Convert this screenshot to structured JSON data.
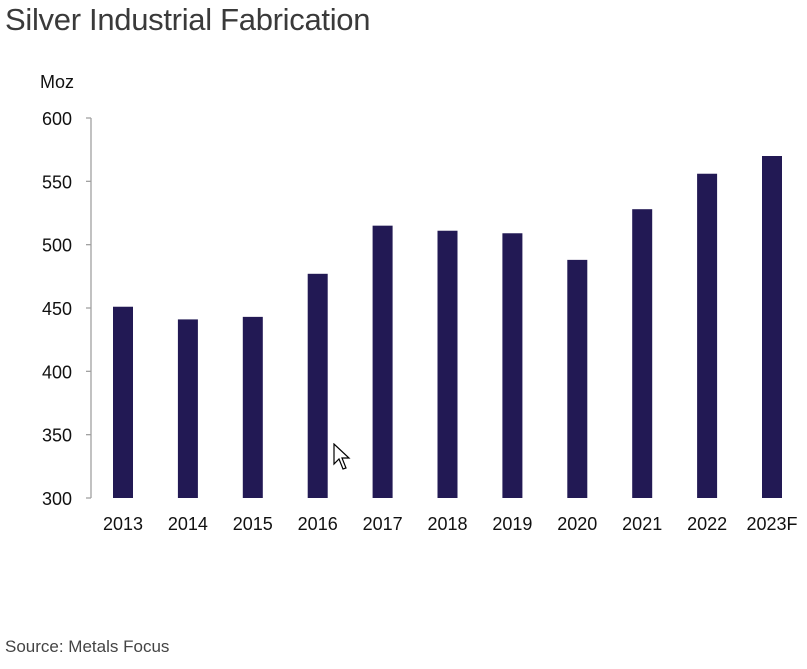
{
  "header": {
    "title": "Silver Industrial Fabrication"
  },
  "footer": {
    "source": "Source: Metals Focus"
  },
  "colors": {
    "bar": "#221954",
    "axis": "#a0a0a0",
    "text": "#111111"
  },
  "chart_data": {
    "type": "bar",
    "title": "Silver Industrial Fabrication",
    "xlabel": "",
    "ylabel": "Moz",
    "ylim": [
      300,
      600
    ],
    "yticks": [
      300,
      350,
      400,
      450,
      500,
      550,
      600
    ],
    "grid": false,
    "legend": "none",
    "categories": [
      "2013",
      "2014",
      "2015",
      "2016",
      "2017",
      "2018",
      "2019",
      "2020",
      "2021",
      "2022",
      "2023F"
    ],
    "values": [
      451,
      441,
      443,
      477,
      515,
      511,
      509,
      488,
      528,
      556,
      570
    ],
    "source": "Source: Metals Focus"
  },
  "cursor": {
    "icon": "mouse-pointer-icon"
  }
}
